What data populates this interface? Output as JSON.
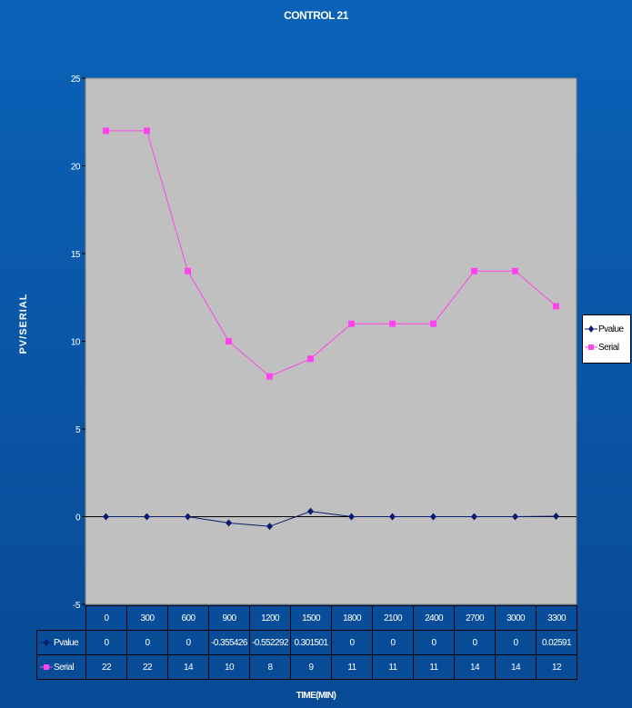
{
  "title": "CONTROL 21",
  "ylabel": "PV/SERIAL",
  "xlabel": "TIME(MIN)",
  "colors": {
    "pvalue": "#0a1a6e",
    "serial": "#ff44ee",
    "plot_bg": "#c0c0c0"
  },
  "chart_data": {
    "type": "line",
    "title": "CONTROL 21",
    "xlabel": "TIME(MIN)",
    "ylabel": "PV/SERIAL",
    "categories": [
      "0",
      "300",
      "600",
      "900",
      "1200",
      "1500",
      "1800",
      "2100",
      "2400",
      "2700",
      "3000",
      "3300"
    ],
    "ylim": [
      -5,
      25
    ],
    "yticks": [
      "-5",
      "0",
      "5",
      "10",
      "15",
      "20",
      "25"
    ],
    "legend_position": "right",
    "grid": false,
    "series": [
      {
        "name": "Pvalue",
        "values": [
          0,
          0,
          0,
          -0.355426,
          -0.552292,
          0.301501,
          0,
          0,
          0,
          0,
          0,
          0.02591
        ],
        "labels": [
          "0",
          "0",
          "0",
          "-0.355426",
          "-0.552292",
          "0.301501",
          "0",
          "0",
          "0",
          "0",
          "0",
          "0.02591"
        ]
      },
      {
        "name": "Serial",
        "values": [
          22,
          22,
          14,
          10,
          8,
          9,
          11,
          11,
          11,
          14,
          14,
          12
        ],
        "labels": [
          "22",
          "22",
          "14",
          "10",
          "8",
          "9",
          "11",
          "11",
          "11",
          "14",
          "14",
          "12"
        ]
      }
    ]
  }
}
